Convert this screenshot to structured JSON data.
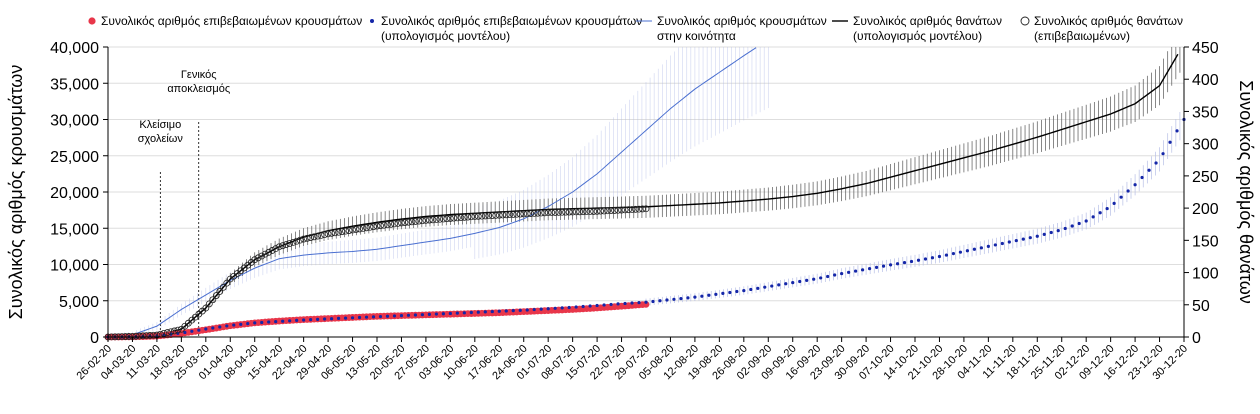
{
  "chart_data": {
    "type": "line",
    "title": "",
    "ylabel_left": "Συνολικός αριθμός κρουσμάτων",
    "ylabel_right": "Συνολικός αριθμός θανάτων",
    "ylim_left": [
      0,
      40000
    ],
    "ylim_right": [
      0,
      450
    ],
    "yticks_left": [
      "0",
      "5,000",
      "10,000",
      "15,000",
      "20,000",
      "25,000",
      "30,000",
      "35,000",
      "40,000"
    ],
    "yticks_right": [
      "0",
      "50",
      "100",
      "150",
      "200",
      "250",
      "300",
      "350",
      "400",
      "450"
    ],
    "grid": true,
    "x_labels": [
      "26-02-20",
      "04-03-20",
      "11-03-20",
      "18-03-20",
      "25-03-20",
      "01-04-20",
      "08-04-20",
      "15-04-20",
      "22-04-20",
      "29-04-20",
      "06-05-20",
      "13-05-20",
      "20-05-20",
      "27-05-20",
      "03-06-20",
      "10-06-20",
      "17-06-20",
      "24-06-20",
      "01-07-20",
      "08-07-20",
      "15-07-20",
      "22-07-20",
      "29-07-20",
      "05-08-20",
      "12-08-20",
      "19-08-20",
      "26-08-20",
      "02-09-20",
      "09-09-20",
      "16-09-20",
      "23-09-20",
      "30-09-20",
      "07-10-20",
      "14-10-20",
      "21-10-20",
      "28-10-20",
      "04-11-20",
      "11-11-20",
      "18-11-20",
      "25-11-20",
      "02-12-20",
      "09-12-20",
      "16-12-20",
      "23-12-20",
      "30-12-20"
    ],
    "annotations": [
      {
        "text": [
          "Κλείσιμο",
          "σχολείων"
        ],
        "date_index": 2.14
      },
      {
        "text": [
          "Γενικός",
          "αποκλεισμός"
        ],
        "date_index": 3.71
      }
    ],
    "series": [
      {
        "name": "Συνολικός αριθμός επιβεβαιωμένων κρουσμάτων",
        "axis": "left",
        "style": "red-dots",
        "points": [
          [
            0,
            0
          ],
          [
            1,
            20
          ],
          [
            2,
            120
          ],
          [
            3,
            500
          ],
          [
            4,
            1000
          ],
          [
            5,
            1550
          ],
          [
            6,
            1950
          ],
          [
            7,
            2200
          ],
          [
            8,
            2400
          ],
          [
            9,
            2550
          ],
          [
            10,
            2700
          ],
          [
            11,
            2850
          ],
          [
            12,
            2950
          ],
          [
            13,
            3050
          ],
          [
            14,
            3150
          ],
          [
            15,
            3250
          ],
          [
            16,
            3350
          ],
          [
            17,
            3500
          ],
          [
            18,
            3650
          ],
          [
            19,
            3800
          ],
          [
            20,
            4000
          ],
          [
            21,
            4250
          ],
          [
            22,
            4500
          ]
        ]
      },
      {
        "name": "Συνολικός αριθμός επιβεβαιωμένων κρουσμάτων (υπολογισμός μοντέλου)",
        "axis": "left",
        "style": "blue-dots",
        "points": [
          [
            0,
            0
          ],
          [
            1,
            20
          ],
          [
            2,
            150
          ],
          [
            3,
            550
          ],
          [
            4,
            1100
          ],
          [
            5,
            1600
          ],
          [
            6,
            1950
          ],
          [
            7,
            2150
          ],
          [
            8,
            2350
          ],
          [
            9,
            2500
          ],
          [
            10,
            2650
          ],
          [
            11,
            2800
          ],
          [
            12,
            2950
          ],
          [
            13,
            3100
          ],
          [
            14,
            3250
          ],
          [
            15,
            3400
          ],
          [
            16,
            3550
          ],
          [
            17,
            3700
          ],
          [
            18,
            3900
          ],
          [
            19,
            4100
          ],
          [
            20,
            4350
          ],
          [
            21,
            4600
          ],
          [
            22,
            4800
          ],
          [
            23,
            5150
          ],
          [
            24,
            5500
          ],
          [
            25,
            5950
          ],
          [
            26,
            6400
          ],
          [
            27,
            6950
          ],
          [
            28,
            7500
          ],
          [
            29,
            8050
          ],
          [
            30,
            8750
          ],
          [
            31,
            9350
          ],
          [
            32,
            9950
          ],
          [
            33,
            10500
          ],
          [
            34,
            11100
          ],
          [
            35,
            11800
          ],
          [
            36,
            12500
          ],
          [
            37,
            13200
          ],
          [
            38,
            13900
          ],
          [
            39,
            14800
          ],
          [
            40,
            16000
          ],
          [
            41,
            18000
          ],
          [
            42,
            21000
          ],
          [
            43,
            24500
          ],
          [
            44,
            30000
          ]
        ]
      },
      {
        "name": "Συνολικός αριθμός κρουσμάτων στην κοινότητα",
        "axis": "left",
        "style": "thin-blue-line",
        "points": [
          [
            0,
            0
          ],
          [
            1,
            300
          ],
          [
            2,
            1500
          ],
          [
            3,
            3800
          ],
          [
            4,
            5800
          ],
          [
            5,
            7800
          ],
          [
            6,
            9500
          ],
          [
            7,
            10800
          ],
          [
            8,
            11300
          ],
          [
            9,
            11600
          ],
          [
            10,
            11800
          ],
          [
            11,
            12100
          ],
          [
            12,
            12600
          ],
          [
            13,
            13100
          ],
          [
            14,
            13600
          ],
          [
            15,
            14300
          ],
          [
            16,
            15100
          ],
          [
            17,
            16300
          ],
          [
            18,
            18000
          ],
          [
            19,
            20000
          ],
          [
            20,
            22500
          ],
          [
            21,
            25500
          ],
          [
            22,
            28500
          ],
          [
            23,
            31500
          ],
          [
            24,
            34200
          ],
          [
            25,
            36500
          ],
          [
            26,
            38800
          ],
          [
            27,
            41000
          ]
        ]
      },
      {
        "name": "Συνολικός αριθμός θανάτων (υπολογισμός μοντέλου)",
        "axis": "right",
        "style": "black-line",
        "points": [
          [
            0,
            0
          ],
          [
            1,
            1
          ],
          [
            2,
            3
          ],
          [
            3,
            12
          ],
          [
            4,
            45
          ],
          [
            5,
            90
          ],
          [
            6,
            120
          ],
          [
            7,
            140
          ],
          [
            8,
            155
          ],
          [
            9,
            165
          ],
          [
            10,
            172
          ],
          [
            11,
            178
          ],
          [
            12,
            183
          ],
          [
            13,
            187
          ],
          [
            14,
            190
          ],
          [
            15,
            192
          ],
          [
            16,
            194
          ],
          [
            17,
            196
          ],
          [
            18,
            198
          ],
          [
            19,
            199
          ],
          [
            20,
            200
          ],
          [
            21,
            201
          ],
          [
            22,
            202
          ],
          [
            23,
            204
          ],
          [
            24,
            206
          ],
          [
            25,
            208
          ],
          [
            26,
            211
          ],
          [
            27,
            214
          ],
          [
            28,
            218
          ],
          [
            29,
            223
          ],
          [
            30,
            230
          ],
          [
            31,
            238
          ],
          [
            32,
            248
          ],
          [
            33,
            258
          ],
          [
            34,
            268
          ],
          [
            35,
            278
          ],
          [
            36,
            288
          ],
          [
            37,
            299
          ],
          [
            38,
            310
          ],
          [
            39,
            322
          ],
          [
            40,
            334
          ],
          [
            41,
            346
          ],
          [
            42,
            362
          ],
          [
            43,
            390
          ],
          [
            44,
            455
          ]
        ]
      },
      {
        "name": "Συνολικός αριθμός θανάτων (επιβεβαιωμένων)",
        "axis": "right",
        "style": "hollow-circles",
        "points": [
          [
            0,
            0
          ],
          [
            1,
            1
          ],
          [
            2,
            3
          ],
          [
            3,
            12
          ],
          [
            4,
            45
          ],
          [
            5,
            90
          ],
          [
            6,
            120
          ],
          [
            7,
            140
          ],
          [
            8,
            152
          ],
          [
            9,
            160
          ],
          [
            10,
            166
          ],
          [
            11,
            172
          ],
          [
            12,
            177
          ],
          [
            13,
            181
          ],
          [
            14,
            184
          ],
          [
            15,
            187
          ],
          [
            16,
            189
          ],
          [
            17,
            191
          ],
          [
            18,
            193
          ],
          [
            19,
            194
          ],
          [
            20,
            195
          ],
          [
            21,
            197
          ],
          [
            22,
            199
          ]
        ]
      }
    ]
  }
}
